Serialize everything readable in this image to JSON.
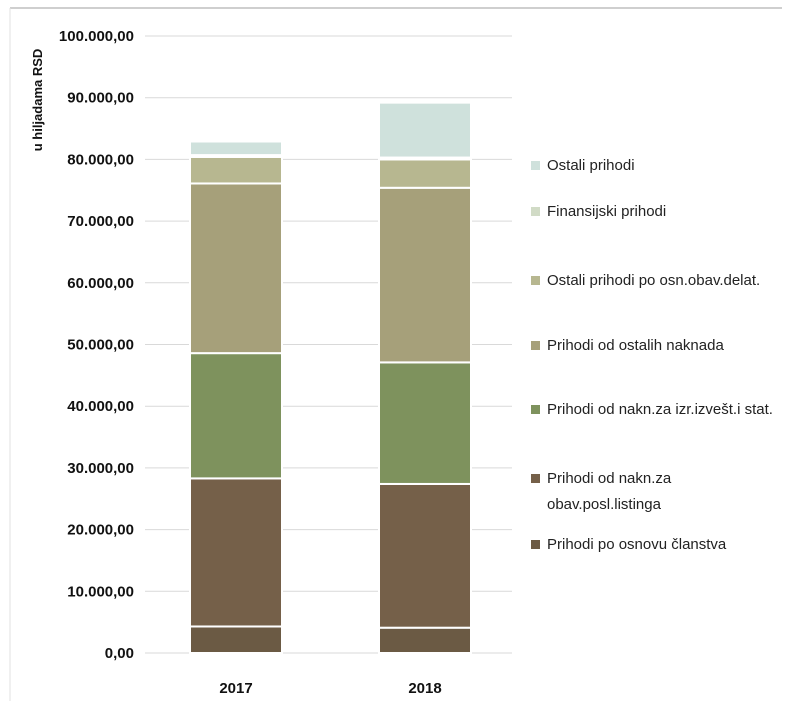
{
  "chart_data": {
    "type": "bar",
    "stacked": true,
    "ylabel": "u hiljadama RSD",
    "ylim": [
      0,
      100000
    ],
    "yticks": [
      0,
      10000,
      20000,
      30000,
      40000,
      50000,
      60000,
      70000,
      80000,
      90000,
      100000
    ],
    "ytick_labels": [
      "0,00",
      "10.000,00",
      "20.000,00",
      "30.000,00",
      "40.000,00",
      "50.000,00",
      "60.000,00",
      "70.000,00",
      "80.000,00",
      "90.000,00",
      "100.000,00"
    ],
    "categories": [
      "2017",
      "2018"
    ],
    "grid": true,
    "legend_position": "right",
    "series": [
      {
        "name": "Prihodi po osnovu članstva",
        "color": "#6b5a44",
        "values": [
          4300,
          4100
        ]
      },
      {
        "name": "Prihodi od nakn.za obav.posl.listinga",
        "color": "#756049",
        "values": [
          24000,
          23300
        ]
      },
      {
        "name": "Prihodi od nakn.za izr.izvešt.i stat.",
        "color": "#7e925d",
        "values": [
          20300,
          19700
        ]
      },
      {
        "name": "Prihodi od ostalih naknada",
        "color": "#a6a07a",
        "values": [
          27500,
          28300
        ]
      },
      {
        "name": "Ostali prihodi po osn.obav.delat.",
        "color": "#b7b790",
        "values": [
          4300,
          4600
        ]
      },
      {
        "name": "Finansijski prihodi",
        "color": "#d1dbc6",
        "values": [
          300,
          300
        ]
      },
      {
        "name": "Ostali prihodi",
        "color": "#cfe1dc",
        "values": [
          2200,
          8900
        ]
      }
    ],
    "legend_lines": [
      [
        "Ostali prihodi"
      ],
      [
        "Finansijski prihodi"
      ],
      [
        "Ostali prihodi po osn.obav.delat."
      ],
      [
        "Prihodi od ostalih naknada"
      ],
      [
        "Prihodi od nakn.za izr.izvešt.i stat."
      ],
      [
        "Prihodi od nakn.za",
        "obav.posl.listinga"
      ],
      [
        "Prihodi po osnovu članstva"
      ]
    ]
  }
}
